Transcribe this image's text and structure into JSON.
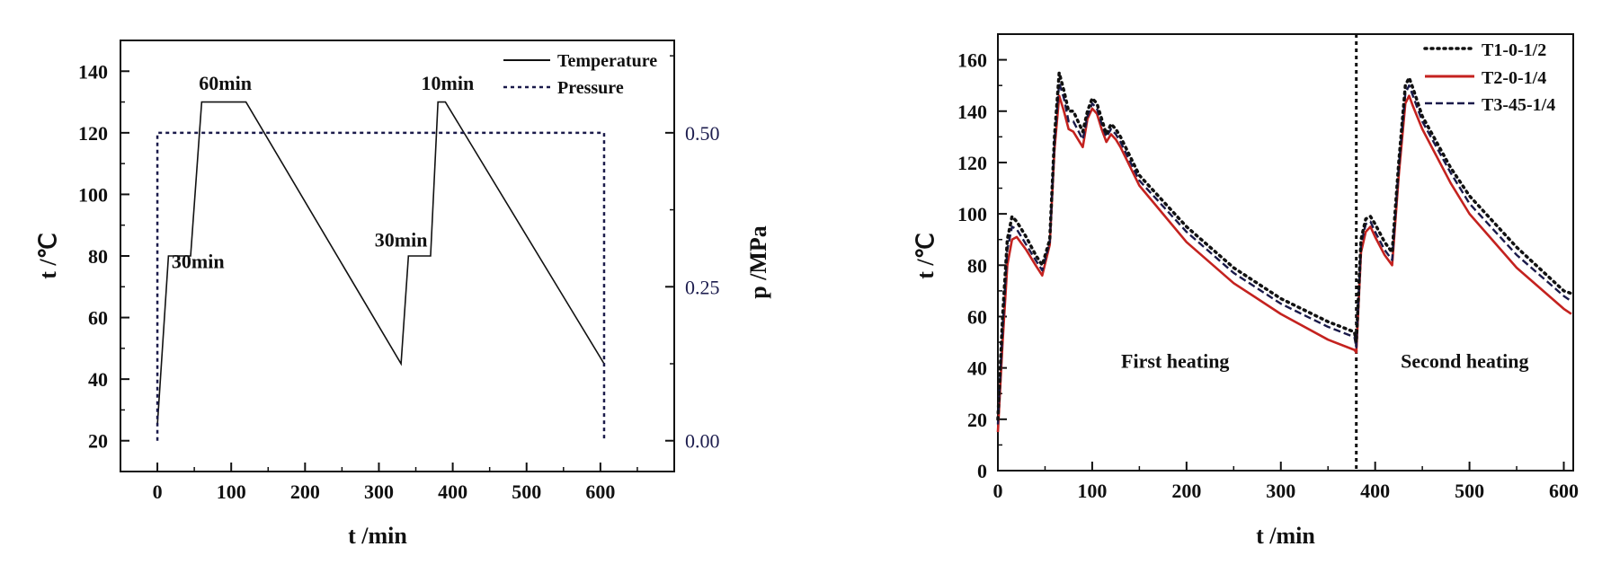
{
  "chart_data": [
    {
      "type": "line",
      "xlabel": "t /min",
      "ylabel": "t /℃",
      "y2label": "p /MPa",
      "xlim": [
        -50,
        700
      ],
      "ylim": [
        10,
        150
      ],
      "y2lim": [
        -0.05,
        0.65
      ],
      "xticks": [
        0,
        100,
        200,
        300,
        400,
        500,
        600
      ],
      "yticks": [
        20,
        40,
        60,
        80,
        100,
        120,
        140
      ],
      "y2ticks": [
        "0.00",
        "0.25",
        "0.50"
      ],
      "legend_position": "top-right",
      "grid": false,
      "series": [
        {
          "name": "Temperature",
          "style": "solid",
          "axis": "left",
          "x": [
            0,
            15,
            45,
            60,
            120,
            330,
            340,
            370,
            380,
            390,
            605
          ],
          "y": [
            25,
            80,
            80,
            130,
            130,
            45,
            80,
            80,
            130,
            130,
            45
          ]
        },
        {
          "name": "Pressure",
          "style": "dotted",
          "axis": "right",
          "x": [
            0,
            0,
            605,
            605
          ],
          "y": [
            0.0,
            0.5,
            0.5,
            0.0
          ]
        }
      ],
      "annotations": [
        {
          "text": "30min",
          "x": 55,
          "y": 76
        },
        {
          "text": "60min",
          "x": 92,
          "y": 134
        },
        {
          "text": "30min",
          "x": 330,
          "y": 83
        },
        {
          "text": "10min",
          "x": 393,
          "y": 134
        }
      ]
    },
    {
      "type": "line",
      "xlabel": "t /min",
      "ylabel": "t /℃",
      "xlim": [
        0,
        610
      ],
      "ylim": [
        0,
        170
      ],
      "xticks": [
        0,
        100,
        200,
        300,
        400,
        500,
        600
      ],
      "yticks": [
        0,
        20,
        40,
        60,
        80,
        100,
        120,
        140,
        160
      ],
      "legend_position": "top-right",
      "grid": false,
      "vline_x": 380,
      "colors": {
        "T1": "#111111",
        "T2": "#c4221f",
        "T3": "#1a1a4a"
      },
      "series": [
        {
          "name": "T1-0-1/2",
          "style": "dotted",
          "x": [
            0,
            5,
            10,
            15,
            20,
            30,
            40,
            47,
            55,
            60,
            65,
            70,
            75,
            80,
            90,
            95,
            100,
            105,
            110,
            115,
            120,
            125,
            130,
            150,
            200,
            250,
            300,
            350,
            378,
            380,
            385,
            390,
            395,
            400,
            410,
            418,
            425,
            432,
            436,
            440,
            450,
            480,
            500,
            550,
            600,
            608
          ],
          "y": [
            20,
            60,
            90,
            99,
            97,
            91,
            84,
            80,
            90,
            130,
            155,
            148,
            140,
            140,
            132,
            140,
            145,
            143,
            137,
            131,
            135,
            133,
            130,
            115,
            95,
            79,
            67,
            58,
            54,
            50,
            90,
            98,
            99,
            96,
            89,
            85,
            120,
            150,
            153,
            149,
            138,
            118,
            107,
            87,
            70,
            69
          ]
        },
        {
          "name": "T2-0-1/4",
          "style": "solid",
          "x": [
            0,
            5,
            10,
            15,
            20,
            30,
            40,
            47,
            55,
            60,
            65,
            70,
            75,
            80,
            90,
            95,
            100,
            105,
            110,
            115,
            120,
            125,
            130,
            150,
            200,
            250,
            300,
            350,
            378,
            380,
            385,
            390,
            395,
            400,
            410,
            418,
            425,
            432,
            436,
            440,
            450,
            480,
            500,
            550,
            600,
            608
          ],
          "y": [
            15,
            50,
            80,
            90,
            91,
            86,
            80,
            76,
            88,
            125,
            146,
            140,
            133,
            132,
            126,
            137,
            141,
            139,
            133,
            128,
            131,
            129,
            126,
            111,
            89,
            73,
            61,
            51,
            47,
            46,
            85,
            93,
            95,
            91,
            84,
            80,
            115,
            143,
            146,
            142,
            133,
            112,
            100,
            79,
            63,
            61
          ]
        },
        {
          "name": "T3-45-1/4",
          "style": "dashed",
          "x": [
            0,
            5,
            10,
            15,
            20,
            30,
            40,
            47,
            55,
            60,
            65,
            70,
            75,
            80,
            90,
            95,
            100,
            105,
            110,
            115,
            120,
            125,
            130,
            150,
            200,
            250,
            300,
            350,
            378,
            380,
            385,
            390,
            395,
            400,
            410,
            418,
            425,
            432,
            436,
            440,
            450,
            480,
            500,
            550,
            600,
            608
          ],
          "y": [
            18,
            55,
            86,
            95,
            94,
            88,
            82,
            78,
            89,
            128,
            151,
            145,
            136,
            136,
            129,
            138,
            143,
            141,
            135,
            130,
            133,
            131,
            128,
            113,
            93,
            77,
            65,
            56,
            52,
            48,
            88,
            96,
            97,
            93,
            86,
            82,
            118,
            147,
            150,
            146,
            136,
            116,
            104,
            84,
            68,
            66
          ]
        }
      ],
      "annotations": [
        {
          "text": "First heating",
          "x": 188,
          "y": 40
        },
        {
          "text": "Second heating",
          "x": 495,
          "y": 40
        }
      ]
    }
  ]
}
